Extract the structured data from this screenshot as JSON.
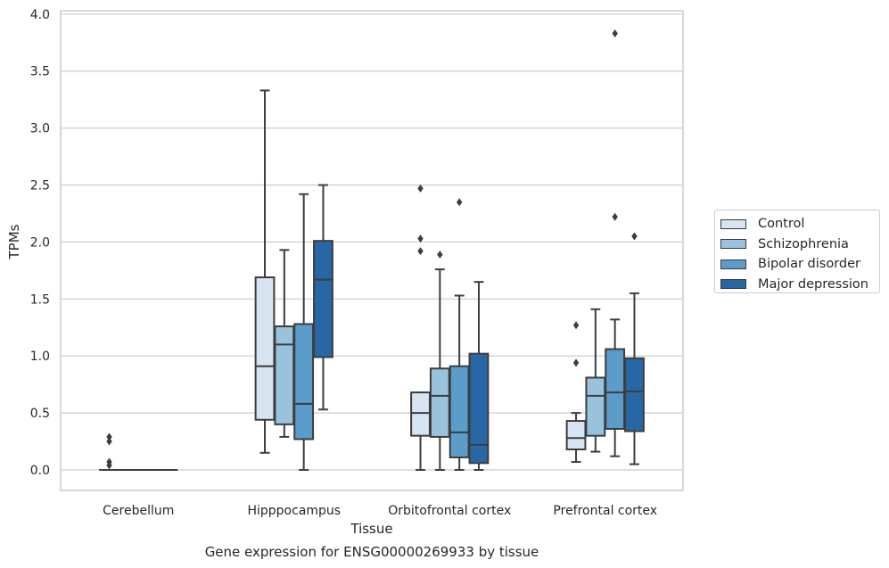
{
  "chart_data": {
    "type": "box",
    "xlabel": "Tissue",
    "ylabel": "TPMs",
    "caption": "Gene expression for ENSG00000269933 by tissue",
    "ylim": [
      -0.18,
      4.03
    ],
    "yticks": [
      "0.0",
      "0.5",
      "1.0",
      "1.5",
      "2.0",
      "2.5",
      "3.0",
      "3.5",
      "4.0"
    ],
    "grid": "horizontal",
    "legend_position": "right",
    "categories": [
      "Cerebellum",
      "Hipppocampus",
      "Orbitofrontal cortex",
      "Prefrontal cortex"
    ],
    "series": [
      {
        "name": "Control",
        "color": "#d7e5f2",
        "boxes": [
          {
            "whislo": 0.0,
            "q1": 0.0,
            "med": 0.0,
            "q3": 0.0,
            "whishi": 0.0,
            "fliers": [
              0.04,
              0.07,
              0.25,
              0.29
            ]
          },
          {
            "whislo": 0.15,
            "q1": 0.44,
            "med": 0.91,
            "q3": 1.69,
            "whishi": 3.33,
            "fliers": []
          },
          {
            "whislo": 0.0,
            "q1": 0.3,
            "med": 0.5,
            "q3": 0.68,
            "whishi": 0.68,
            "fliers": [
              1.92,
              2.03,
              2.47
            ]
          },
          {
            "whislo": 0.07,
            "q1": 0.18,
            "med": 0.28,
            "q3": 0.43,
            "whishi": 0.5,
            "fliers": [
              0.94,
              1.27
            ]
          }
        ]
      },
      {
        "name": "Schizophrenia",
        "color": "#99c3dd",
        "boxes": [
          {
            "whislo": 0.0,
            "q1": 0.0,
            "med": 0.0,
            "q3": 0.0,
            "whishi": 0.0,
            "fliers": []
          },
          {
            "whislo": 0.29,
            "q1": 0.4,
            "med": 1.1,
            "q3": 1.26,
            "whishi": 1.93,
            "fliers": []
          },
          {
            "whislo": 0.0,
            "q1": 0.29,
            "med": 0.65,
            "q3": 0.89,
            "whishi": 1.76,
            "fliers": [
              1.89
            ]
          },
          {
            "whislo": 0.16,
            "q1": 0.3,
            "med": 0.65,
            "q3": 0.81,
            "whishi": 1.41,
            "fliers": []
          }
        ]
      },
      {
        "name": "Bipolar disorder",
        "color": "#5b9ccb",
        "boxes": [
          {
            "whislo": 0.0,
            "q1": 0.0,
            "med": 0.0,
            "q3": 0.0,
            "whishi": 0.0,
            "fliers": []
          },
          {
            "whislo": 0.0,
            "q1": 0.27,
            "med": 0.58,
            "q3": 1.28,
            "whishi": 2.42,
            "fliers": []
          },
          {
            "whislo": 0.0,
            "q1": 0.11,
            "med": 0.33,
            "q3": 0.91,
            "whishi": 1.53,
            "fliers": [
              2.35
            ]
          },
          {
            "whislo": 0.12,
            "q1": 0.36,
            "med": 0.68,
            "q3": 1.06,
            "whishi": 1.32,
            "fliers": [
              2.22,
              3.83
            ]
          }
        ]
      },
      {
        "name": "Major depression",
        "color": "#2767a5",
        "boxes": [
          {
            "whislo": 0.0,
            "q1": 0.0,
            "med": 0.0,
            "q3": 0.0,
            "whishi": 0.0,
            "fliers": []
          },
          {
            "whislo": 0.53,
            "q1": 0.99,
            "med": 1.67,
            "q3": 2.01,
            "whishi": 2.5,
            "fliers": []
          },
          {
            "whislo": 0.0,
            "q1": 0.06,
            "med": 0.22,
            "q3": 1.02,
            "whishi": 1.65,
            "fliers": []
          },
          {
            "whislo": 0.05,
            "q1": 0.34,
            "med": 0.69,
            "q3": 0.98,
            "whishi": 1.55,
            "fliers": [
              2.05
            ]
          }
        ]
      }
    ]
  }
}
